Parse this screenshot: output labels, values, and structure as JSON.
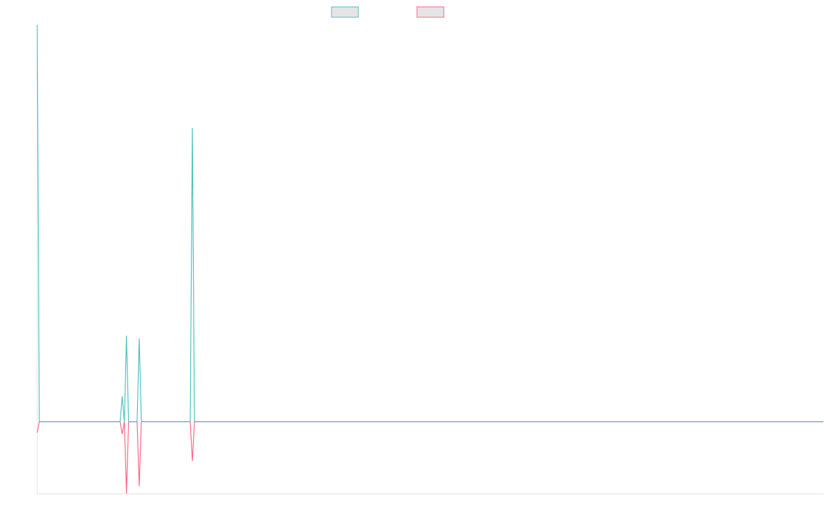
{
  "chart_data": {
    "type": "line",
    "title": "",
    "xlabel": "",
    "ylabel": "",
    "n_points": 371,
    "ylim": [
      -18.1,
      100
    ],
    "grid": false,
    "legend_position": "top-center",
    "series": [
      {
        "color": "#4bc0c0",
        "values_nonzero": {
          "0": 100,
          "40": 6.4,
          "42": 21.7,
          "48": 21.0,
          "73": 74.0
        }
      },
      {
        "color": "#ff6384",
        "values_nonzero": {
          "0": -2.8,
          "40": -3.1,
          "42": -18.1,
          "48": -16.3,
          "73": -9.9
        }
      }
    ],
    "legend_fill": "#e5e5e5",
    "axis_color": "#e0e0e0"
  }
}
